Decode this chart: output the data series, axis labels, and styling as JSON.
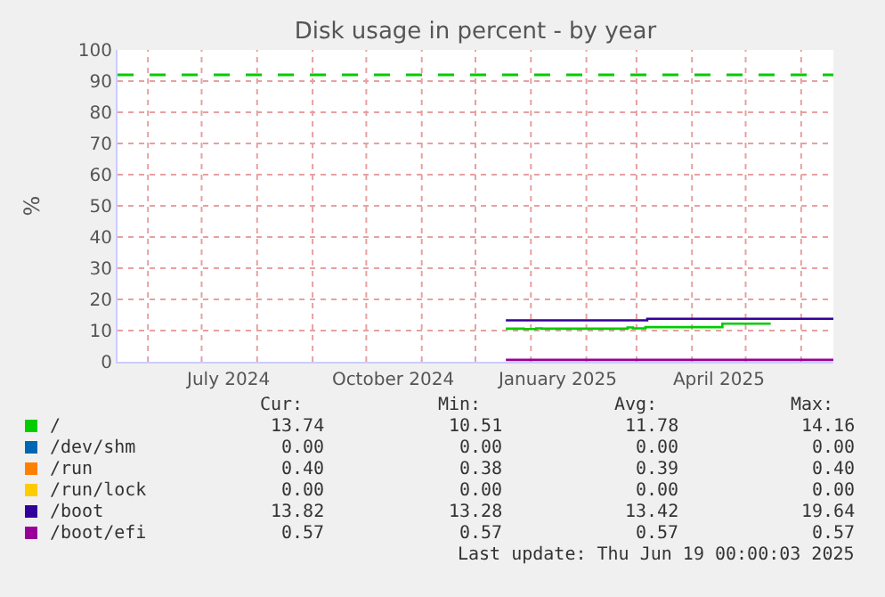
{
  "chart_data": {
    "type": "step",
    "title": "Disk usage in percent - by year",
    "ylabel": "%",
    "xlim": [
      "2024-05-15",
      "2025-06-19"
    ],
    "xticks": [
      {
        "value": "2024-06-01",
        "label": null
      },
      {
        "value": "2024-07-01",
        "label": null
      },
      {
        "value": "2024-07-16",
        "label": "July 2024"
      },
      {
        "value": "2024-08-01",
        "label": null
      },
      {
        "value": "2024-09-01",
        "label": null
      },
      {
        "value": "2024-10-01",
        "label": null
      },
      {
        "value": "2024-10-16",
        "label": "October 2024"
      },
      {
        "value": "2024-11-01",
        "label": null
      },
      {
        "value": "2024-12-01",
        "label": null
      },
      {
        "value": "2025-01-01",
        "label": null
      },
      {
        "value": "2025-01-16",
        "label": "January 2025"
      },
      {
        "value": "2025-02-01",
        "label": null
      },
      {
        "value": "2025-03-01",
        "label": null
      },
      {
        "value": "2025-04-01",
        "label": null
      },
      {
        "value": "2025-04-16",
        "label": "April 2025"
      },
      {
        "value": "2025-05-01",
        "label": null
      },
      {
        "value": "2025-06-01",
        "label": null
      }
    ],
    "ylim": [
      0,
      100
    ],
    "yticks": [
      0,
      10,
      20,
      30,
      40,
      50,
      60,
      70,
      80,
      90,
      100
    ],
    "grid": true,
    "legend": "bottom",
    "ref_lines": [
      {
        "axis": "y",
        "value": 92,
        "label": null,
        "color": "#00cc00",
        "line_style": "dashed"
      }
    ],
    "series": [
      {
        "name": "/",
        "color": "#00cc00",
        "x": [
          "2024-12-18",
          "2024-12-28",
          "2025-01-04",
          "2025-01-07",
          "2025-02-24",
          "2025-02-27",
          "2025-03-06",
          "2025-04-18",
          "2025-05-15"
        ],
        "values": [
          10.6,
          10.5,
          10.7,
          10.6,
          11.0,
          10.7,
          11.1,
          12.2,
          12.2
        ]
      },
      {
        "name": "/dev/shm",
        "color": "#0066b3"
      },
      {
        "name": "/run",
        "color": "#ff8000"
      },
      {
        "name": "/run/lock",
        "color": "#ffcc00"
      },
      {
        "name": "/boot",
        "color": "#330099",
        "x": [
          "2024-12-18",
          "2025-03-07",
          "2025-06-19"
        ],
        "values": [
          13.3,
          13.8,
          13.8
        ]
      },
      {
        "name": "/boot/efi",
        "color": "#990099",
        "x": [
          "2024-12-18",
          "2025-06-19"
        ],
        "values": [
          0.6,
          0.6
        ]
      }
    ],
    "annotations": [
      "Cur:",
      "Min:",
      "Avg:",
      "Max:",
      "13.74",
      "10.51",
      "11.78",
      "14.16",
      "0.00",
      "0.00",
      "0.00",
      "0.00",
      "0.40",
      "0.38",
      "0.39",
      "0.40",
      "0.00",
      "0.00",
      "0.00",
      "0.00",
      "13.82",
      "13.28",
      "13.42",
      "19.64",
      "0.57",
      "0.57",
      "0.57",
      "0.57",
      "Last update: Thu Jun 19 00:00:03 2025"
    ]
  }
}
